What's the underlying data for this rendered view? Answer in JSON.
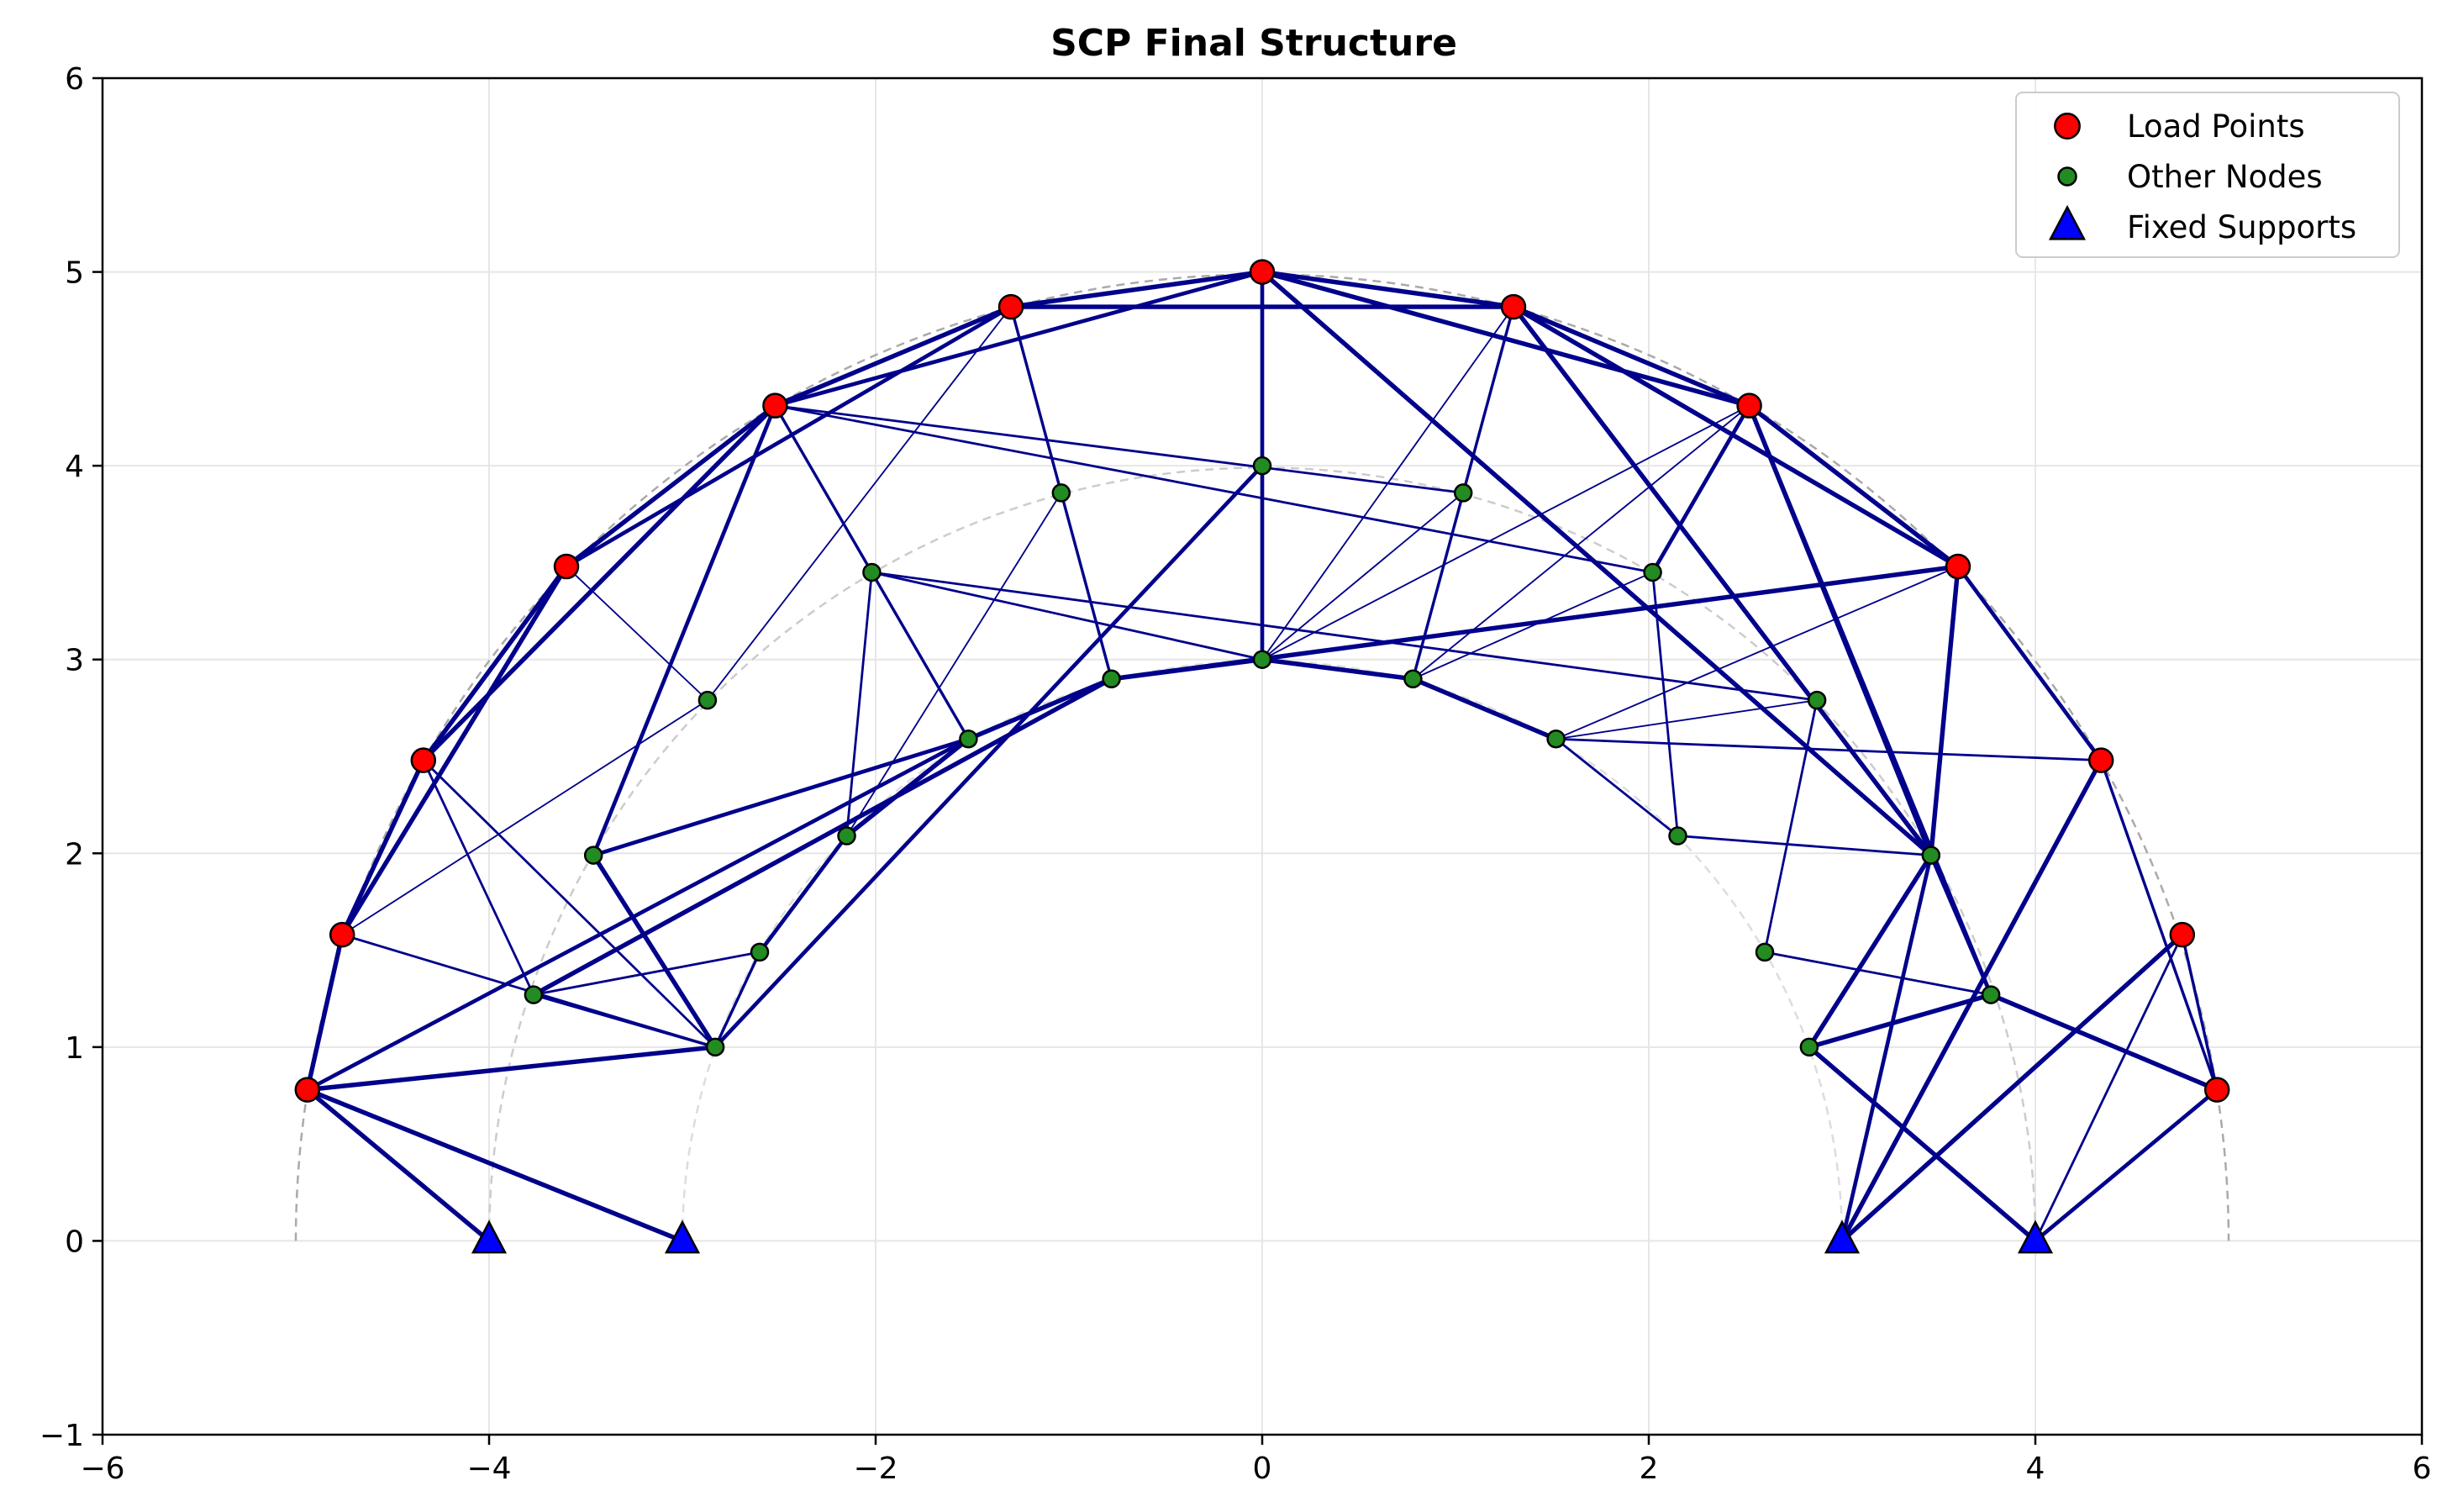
{
  "chart_data": {
    "type": "scatter",
    "title": "SCP Final Structure",
    "xlabel": "",
    "ylabel": "",
    "xlim": [
      -6,
      6
    ],
    "ylim": [
      -1,
      6
    ],
    "x_ticks": [
      -6,
      -4,
      -2,
      0,
      2,
      4,
      6
    ],
    "y_ticks": [
      -1,
      0,
      1,
      2,
      3,
      4,
      5,
      6
    ],
    "x_tick_labels": [
      "−6",
      "−4",
      "−2",
      "0",
      "2",
      "4",
      "6"
    ],
    "y_tick_labels": [
      "−1",
      "0",
      "1",
      "2",
      "3",
      "4",
      "5",
      "6"
    ],
    "grid": true,
    "legend_position": "top-right",
    "reference_arcs": [
      {
        "radius": 5,
        "color": "#aaaaaa"
      },
      {
        "radius": 4,
        "color": "#cccccc"
      },
      {
        "radius": 3,
        "color": "#dddddd"
      }
    ],
    "series": [
      {
        "name": "Load Points",
        "marker": "circle",
        "color": "#ff0000",
        "points": [
          [
            -4.94,
            0.78
          ],
          [
            -4.76,
            1.58
          ],
          [
            -4.34,
            2.48
          ],
          [
            -3.6,
            3.48
          ],
          [
            -2.52,
            4.31
          ],
          [
            -1.3,
            4.82
          ],
          [
            0.0,
            5.0
          ],
          [
            1.3,
            4.82
          ],
          [
            2.52,
            4.31
          ],
          [
            3.6,
            3.48
          ],
          [
            4.34,
            2.48
          ],
          [
            4.76,
            1.58
          ],
          [
            4.94,
            0.78
          ]
        ]
      },
      {
        "name": "Other Nodes",
        "marker": "circle",
        "color": "#228b22",
        "points": [
          [
            -2.87,
            2.79
          ],
          [
            -2.83,
            1.0
          ],
          [
            -2.6,
            1.49
          ],
          [
            -2.15,
            2.09
          ],
          [
            -1.52,
            2.59
          ],
          [
            -0.78,
            2.9
          ],
          [
            0.0,
            3.0
          ],
          [
            0.78,
            2.9
          ],
          [
            1.52,
            2.59
          ],
          [
            2.15,
            2.09
          ],
          [
            2.6,
            1.49
          ],
          [
            2.83,
            1.0
          ],
          [
            2.87,
            2.79
          ],
          [
            -3.77,
            1.27
          ],
          [
            -3.46,
            1.99
          ],
          [
            -2.02,
            3.45
          ],
          [
            -1.04,
            3.86
          ],
          [
            0.0,
            4.0
          ],
          [
            1.04,
            3.86
          ],
          [
            2.02,
            3.45
          ],
          [
            3.46,
            1.99
          ],
          [
            3.77,
            1.27
          ]
        ]
      },
      {
        "name": "Fixed Supports",
        "marker": "triangle",
        "color": "#0000ff",
        "points": [
          [
            -4.0,
            0.0
          ],
          [
            -3.0,
            0.0
          ],
          [
            3.0,
            0.0
          ],
          [
            4.0,
            0.0
          ]
        ]
      }
    ],
    "members": [
      {
        "from": [
          -4.94,
          0.78
        ],
        "to": [
          -4.0,
          0.0
        ],
        "width": 3.5
      },
      {
        "from": [
          -4.94,
          0.78
        ],
        "to": [
          -3.0,
          0.0
        ],
        "width": 3.5
      },
      {
        "from": [
          -4.94,
          0.78
        ],
        "to": [
          -2.83,
          1.0
        ],
        "width": 3.5
      },
      {
        "from": [
          -4.94,
          0.78
        ],
        "to": [
          -4.76,
          1.58
        ],
        "width": 3.5
      },
      {
        "from": [
          -4.94,
          0.78
        ],
        "to": [
          -1.52,
          2.59
        ],
        "width": 3.0
      },
      {
        "from": [
          -4.76,
          1.58
        ],
        "to": [
          -4.34,
          2.48
        ],
        "width": 3.5
      },
      {
        "from": [
          -4.76,
          1.58
        ],
        "to": [
          -3.6,
          3.48
        ],
        "width": 3.5
      },
      {
        "from": [
          -4.76,
          1.58
        ],
        "to": [
          -2.83,
          1.0
        ],
        "width": 1.8
      },
      {
        "from": [
          -4.76,
          1.58
        ],
        "to": [
          -2.87,
          2.79
        ],
        "width": 1.2
      },
      {
        "from": [
          -4.34,
          2.48
        ],
        "to": [
          -3.6,
          3.48
        ],
        "width": 3.5
      },
      {
        "from": [
          -4.34,
          2.48
        ],
        "to": [
          -2.52,
          4.31
        ],
        "width": 3.5
      },
      {
        "from": [
          -4.34,
          2.48
        ],
        "to": [
          -3.77,
          1.27
        ],
        "width": 1.8
      },
      {
        "from": [
          -4.34,
          2.48
        ],
        "to": [
          -2.83,
          1.0
        ],
        "width": 1.8
      },
      {
        "from": [
          -3.6,
          3.48
        ],
        "to": [
          -2.52,
          4.31
        ],
        "width": 3.5
      },
      {
        "from": [
          -3.6,
          3.48
        ],
        "to": [
          -1.3,
          4.82
        ],
        "width": 3.0
      },
      {
        "from": [
          -3.6,
          3.48
        ],
        "to": [
          -2.87,
          2.79
        ],
        "width": 1.2
      },
      {
        "from": [
          -2.52,
          4.31
        ],
        "to": [
          -1.3,
          4.82
        ],
        "width": 3.5
      },
      {
        "from": [
          -2.52,
          4.31
        ],
        "to": [
          0.0,
          5.0
        ],
        "width": 3.0
      },
      {
        "from": [
          -2.52,
          4.31
        ],
        "to": [
          -3.46,
          1.99
        ],
        "width": 3.0
      },
      {
        "from": [
          -2.52,
          4.31
        ],
        "to": [
          -2.02,
          3.45
        ],
        "width": 2.2
      },
      {
        "from": [
          -2.52,
          4.31
        ],
        "to": [
          1.04,
          3.86
        ],
        "width": 1.8
      },
      {
        "from": [
          -2.52,
          4.31
        ],
        "to": [
          2.02,
          3.45
        ],
        "width": 1.8
      },
      {
        "from": [
          -1.3,
          4.82
        ],
        "to": [
          0.0,
          5.0
        ],
        "width": 3.5
      },
      {
        "from": [
          -1.3,
          4.82
        ],
        "to": [
          1.3,
          4.82
        ],
        "width": 3.5
      },
      {
        "from": [
          -1.3,
          4.82
        ],
        "to": [
          -0.78,
          2.9
        ],
        "width": 2.2
      },
      {
        "from": [
          -1.3,
          4.82
        ],
        "to": [
          -2.87,
          2.79
        ],
        "width": 1.2
      },
      {
        "from": [
          0.0,
          5.0
        ],
        "to": [
          1.3,
          4.82
        ],
        "width": 3.5
      },
      {
        "from": [
          0.0,
          5.0
        ],
        "to": [
          2.52,
          4.31
        ],
        "width": 3.5
      },
      {
        "from": [
          0.0,
          5.0
        ],
        "to": [
          3.46,
          1.99
        ],
        "width": 3.5
      },
      {
        "from": [
          0.0,
          5.0
        ],
        "to": [
          0.0,
          3.0
        ],
        "width": 3.0
      },
      {
        "from": [
          1.3,
          4.82
        ],
        "to": [
          2.52,
          4.31
        ],
        "width": 3.5
      },
      {
        "from": [
          1.3,
          4.82
        ],
        "to": [
          3.6,
          3.48
        ],
        "width": 3.5
      },
      {
        "from": [
          1.3,
          4.82
        ],
        "to": [
          3.46,
          1.99
        ],
        "width": 3.5
      },
      {
        "from": [
          1.3,
          4.82
        ],
        "to": [
          0.78,
          2.9
        ],
        "width": 2.2
      },
      {
        "from": [
          1.3,
          4.82
        ],
        "to": [
          0.0,
          3.0
        ],
        "width": 1.2
      },
      {
        "from": [
          2.52,
          4.31
        ],
        "to": [
          3.6,
          3.48
        ],
        "width": 3.5
      },
      {
        "from": [
          2.52,
          4.31
        ],
        "to": [
          3.46,
          1.99
        ],
        "width": 3.5
      },
      {
        "from": [
          2.52,
          4.31
        ],
        "to": [
          3.77,
          1.27
        ],
        "width": 3.0
      },
      {
        "from": [
          2.52,
          4.31
        ],
        "to": [
          2.02,
          3.45
        ],
        "width": 3.0
      },
      {
        "from": [
          2.52,
          4.31
        ],
        "to": [
          0.78,
          2.9
        ],
        "width": 1.2
      },
      {
        "from": [
          3.6,
          3.48
        ],
        "to": [
          4.34,
          2.48
        ],
        "width": 3.0
      },
      {
        "from": [
          3.6,
          3.48
        ],
        "to": [
          3.46,
          1.99
        ],
        "width": 3.5
      },
      {
        "from": [
          3.6,
          3.48
        ],
        "to": [
          -0.78,
          2.9
        ],
        "width": 3.5
      },
      {
        "from": [
          3.6,
          3.48
        ],
        "to": [
          1.52,
          2.59
        ],
        "width": 1.2
      },
      {
        "from": [
          4.34,
          2.48
        ],
        "to": [
          4.94,
          0.78
        ],
        "width": 2.2
      },
      {
        "from": [
          4.34,
          2.48
        ],
        "to": [
          3.0,
          0.0
        ],
        "width": 3.5
      },
      {
        "from": [
          4.34,
          2.48
        ],
        "to": [
          1.52,
          2.59
        ],
        "width": 1.8
      },
      {
        "from": [
          4.76,
          1.58
        ],
        "to": [
          4.94,
          0.78
        ],
        "width": 2.2
      },
      {
        "from": [
          4.76,
          1.58
        ],
        "to": [
          3.0,
          0.0
        ],
        "width": 3.5
      },
      {
        "from": [
          4.76,
          1.58
        ],
        "to": [
          4.0,
          0.0
        ],
        "width": 1.8
      },
      {
        "from": [
          4.94,
          0.78
        ],
        "to": [
          3.77,
          1.27
        ],
        "width": 3.5
      },
      {
        "from": [
          4.94,
          0.78
        ],
        "to": [
          4.0,
          0.0
        ],
        "width": 3.0
      },
      {
        "from": [
          -3.46,
          1.99
        ],
        "to": [
          -2.83,
          1.0
        ],
        "width": 3.5
      },
      {
        "from": [
          -3.46,
          1.99
        ],
        "to": [
          -1.52,
          2.59
        ],
        "width": 3.0
      },
      {
        "from": [
          -3.77,
          1.27
        ],
        "to": [
          -2.83,
          1.0
        ],
        "width": 2.2
      },
      {
        "from": [
          -3.77,
          1.27
        ],
        "to": [
          -2.6,
          1.49
        ],
        "width": 1.8
      },
      {
        "from": [
          -3.77,
          1.27
        ],
        "to": [
          -0.78,
          2.9
        ],
        "width": 3.5
      },
      {
        "from": [
          -2.83,
          1.0
        ],
        "to": [
          -2.6,
          1.49
        ],
        "width": 2.2
      },
      {
        "from": [
          -2.83,
          1.0
        ],
        "to": [
          0.0,
          4.0
        ],
        "width": 3.0
      },
      {
        "from": [
          -2.6,
          1.49
        ],
        "to": [
          -2.15,
          2.09
        ],
        "width": 3.0
      },
      {
        "from": [
          -2.15,
          2.09
        ],
        "to": [
          -1.52,
          2.59
        ],
        "width": 3.5
      },
      {
        "from": [
          -2.15,
          2.09
        ],
        "to": [
          -2.02,
          3.45
        ],
        "width": 1.8
      },
      {
        "from": [
          -2.15,
          2.09
        ],
        "to": [
          -1.04,
          3.86
        ],
        "width": 1.2
      },
      {
        "from": [
          -1.52,
          2.59
        ],
        "to": [
          -0.78,
          2.9
        ],
        "width": 3.5
      },
      {
        "from": [
          -1.52,
          2.59
        ],
        "to": [
          -2.02,
          3.45
        ],
        "width": 2.2
      },
      {
        "from": [
          -0.78,
          2.9
        ],
        "to": [
          0.0,
          3.0
        ],
        "width": 3.5
      },
      {
        "from": [
          -2.02,
          3.45
        ],
        "to": [
          0.0,
          3.0
        ],
        "width": 1.8
      },
      {
        "from": [
          -2.02,
          3.45
        ],
        "to": [
          2.87,
          2.79
        ],
        "width": 1.8
      },
      {
        "from": [
          0.0,
          3.0
        ],
        "to": [
          0.78,
          2.9
        ],
        "width": 3.5
      },
      {
        "from": [
          0.0,
          3.0
        ],
        "to": [
          1.04,
          3.86
        ],
        "width": 1.2
      },
      {
        "from": [
          0.0,
          3.0
        ],
        "to": [
          2.52,
          4.31
        ],
        "width": 1.2
      },
      {
        "from": [
          0.0,
          3.0
        ],
        "to": [
          0.0,
          4.0
        ],
        "width": 1.8
      },
      {
        "from": [
          0.78,
          2.9
        ],
        "to": [
          1.52,
          2.59
        ],
        "width": 3.5
      },
      {
        "from": [
          0.78,
          2.9
        ],
        "to": [
          2.02,
          3.45
        ],
        "width": 1.2
      },
      {
        "from": [
          1.52,
          2.59
        ],
        "to": [
          2.15,
          2.09
        ],
        "width": 1.8
      },
      {
        "from": [
          1.52,
          2.59
        ],
        "to": [
          2.87,
          2.79
        ],
        "width": 1.2
      },
      {
        "from": [
          2.02,
          3.45
        ],
        "to": [
          2.15,
          2.09
        ],
        "width": 1.8
      },
      {
        "from": [
          2.15,
          2.09
        ],
        "to": [
          3.46,
          1.99
        ],
        "width": 1.8
      },
      {
        "from": [
          2.87,
          2.79
        ],
        "to": [
          2.6,
          1.49
        ],
        "width": 1.8
      },
      {
        "from": [
          2.6,
          1.49
        ],
        "to": [
          3.77,
          1.27
        ],
        "width": 1.8
      },
      {
        "from": [
          2.83,
          1.0
        ],
        "to": [
          3.46,
          1.99
        ],
        "width": 3.5
      },
      {
        "from": [
          2.83,
          1.0
        ],
        "to": [
          3.77,
          1.27
        ],
        "width": 3.5
      },
      {
        "from": [
          2.83,
          1.0
        ],
        "to": [
          4.0,
          0.0
        ],
        "width": 3.5
      },
      {
        "from": [
          3.46,
          1.99
        ],
        "to": [
          3.0,
          0.0
        ],
        "width": 3.0
      },
      {
        "from": [
          3.46,
          1.99
        ],
        "to": [
          3.77,
          1.27
        ],
        "width": 3.0
      }
    ]
  }
}
